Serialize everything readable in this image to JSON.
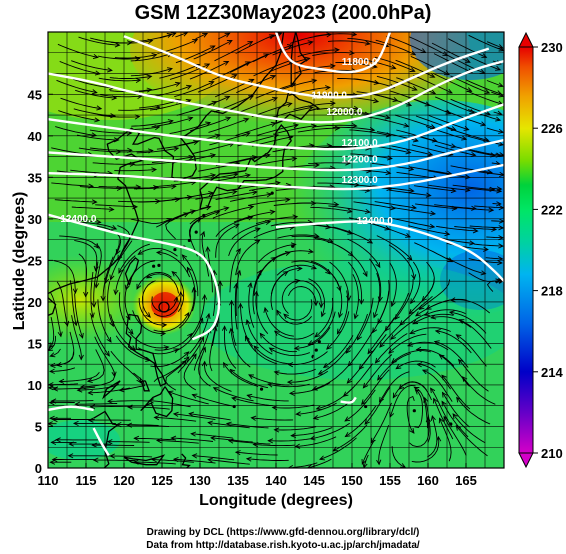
{
  "title": "GSM 12Z30May2023 (200.0hPa)",
  "xlabel": "Longitude (degrees)",
  "ylabel": "Latitude (degrees)",
  "x_ticks": [
    "110",
    "115",
    "120",
    "125",
    "130",
    "135",
    "140",
    "145",
    "150",
    "155",
    "160",
    "165"
  ],
  "y_ticks": [
    "0",
    "5",
    "10",
    "15",
    "20",
    "25",
    "30",
    "35",
    "40",
    "45"
  ],
  "colorbar_ticks": [
    "210",
    "214",
    "218",
    "222",
    "226",
    "230"
  ],
  "contour_labels": [
    {
      "text": "11800.0",
      "lon": 151,
      "lat": 48.5
    },
    {
      "text": "11900.0",
      "lon": 147,
      "lat": 44.5
    },
    {
      "text": "12000.0",
      "lon": 149,
      "lat": 42.5
    },
    {
      "text": "12100.0",
      "lon": 151,
      "lat": 38.8
    },
    {
      "text": "12200.0",
      "lon": 151,
      "lat": 36.8
    },
    {
      "text": "12300.0",
      "lon": 151,
      "lat": 34.3
    },
    {
      "text": "12400.0",
      "lon": 114,
      "lat": 29.6
    },
    {
      "text": "12400.0",
      "lon": 153,
      "lat": 29.4
    }
  ],
  "credits": {
    "line1": "Drawing by DCL (https://www.gfd-dennou.org/library/dcl/)",
    "line2": "Data from http://database.rish.kyoto-u.ac.jp/arch/jmadata/"
  },
  "colors": {
    "colormap": [
      "#d400c8",
      "#0000c8",
      "#0064e6",
      "#00b4f0",
      "#00d2a0",
      "#00e664",
      "#00d23c",
      "#78dc00",
      "#e6e600",
      "#f0a000",
      "#f05000",
      "#e60000"
    ]
  }
}
